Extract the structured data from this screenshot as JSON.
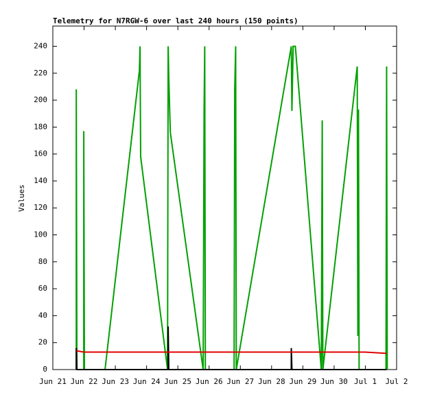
{
  "chart_data": {
    "type": "line",
    "title": "Telemetry for N7RGW-6 over last 240 hours (150 points)",
    "y_label": "Values",
    "xlim": [
      0,
      11
    ],
    "xticks": [
      {
        "value": 0,
        "label": "Jun 21"
      },
      {
        "value": 1,
        "label": "Jun 22"
      },
      {
        "value": 2,
        "label": "Jun 23"
      },
      {
        "value": 3,
        "label": "Jun 24"
      },
      {
        "value": 4,
        "label": "Jun 25"
      },
      {
        "value": 5,
        "label": "Jun 26"
      },
      {
        "value": 6,
        "label": "Jun 27"
      },
      {
        "value": 7,
        "label": "Jun 28"
      },
      {
        "value": 8,
        "label": "Jun 29"
      },
      {
        "value": 9,
        "label": "Jun 30"
      },
      {
        "value": 10,
        "label": "Jul 1"
      },
      {
        "value": 11,
        "label": "Jul 2"
      }
    ],
    "ylim": [
      0,
      255
    ],
    "yticks": [
      0,
      20,
      40,
      60,
      80,
      100,
      120,
      140,
      160,
      180,
      200,
      220,
      240
    ],
    "series": [
      {
        "color": "#00a000",
        "x": [
          0.75,
          0.75,
          0.77,
          0.99,
          0.99,
          1.01,
          1.67,
          2.77,
          2.79,
          2.81,
          3.67,
          3.69,
          3.71,
          3.74,
          3.76,
          4.81,
          4.84,
          4.86,
          4.88,
          5.8,
          5.82,
          5.85,
          5.87,
          7.63,
          7.65,
          7.69,
          7.76,
          8.59,
          8.62,
          8.64,
          9.74,
          9.76,
          9.78,
          9.8,
          10.66,
          10.68,
          10.7
        ],
        "values": [
          0,
          208,
          0,
          0,
          177,
          0,
          0,
          222,
          240,
          158,
          0,
          240,
          217,
          192,
          176,
          0,
          193,
          240,
          0,
          0,
          208,
          240,
          0,
          240,
          192,
          240,
          240,
          0,
          185,
          0,
          225,
          25,
          193,
          0,
          0,
          225,
          0
        ]
      },
      {
        "color": "#000000",
        "x": [
          0.75,
          0.75,
          0.77,
          3.69,
          3.69,
          3.71,
          7.63,
          7.63,
          7.65,
          10.68
        ],
        "values": [
          0,
          16,
          0,
          0,
          32,
          0,
          0,
          16,
          0,
          0
        ]
      },
      {
        "color": "#e00000",
        "x": [
          0.75,
          0.99,
          9.99,
          10.68
        ],
        "values": [
          14,
          13,
          13,
          12
        ]
      }
    ]
  }
}
